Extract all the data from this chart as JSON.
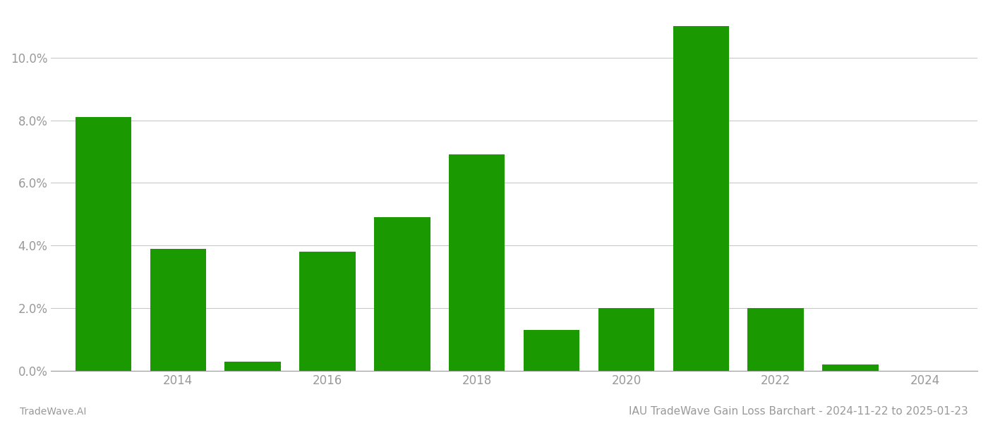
{
  "years": [
    2013,
    2014,
    2015,
    2016,
    2017,
    2018,
    2019,
    2020,
    2021,
    2022,
    2023
  ],
  "values": [
    0.081,
    0.039,
    0.003,
    0.038,
    0.049,
    0.069,
    0.013,
    0.02,
    0.11,
    0.02,
    0.002
  ],
  "bar_color": "#1a9a00",
  "background_color": "#ffffff",
  "grid_color": "#c8c8c8",
  "title": "IAU TradeWave Gain Loss Barchart - 2024-11-22 to 2025-01-23",
  "footer_left": "TradeWave.AI",
  "ylim": [
    0,
    0.115
  ],
  "ytick_values": [
    0.0,
    0.02,
    0.04,
    0.06,
    0.08,
    0.1
  ],
  "xtick_positions": [
    2014,
    2016,
    2018,
    2020,
    2022,
    2024
  ],
  "xlim": [
    2012.3,
    2024.7
  ],
  "bar_width": 0.75,
  "title_fontsize": 11,
  "footer_fontsize": 10,
  "tick_fontsize": 12,
  "tick_color": "#999999"
}
